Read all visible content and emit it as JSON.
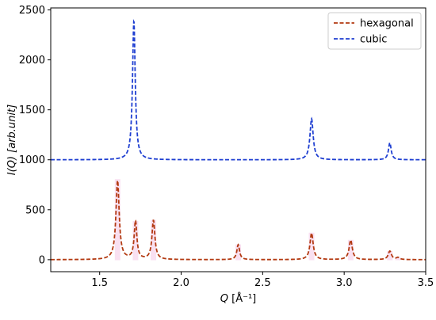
{
  "chart_data": {
    "type": "line",
    "xlabel_main": "Q",
    "xlabel_unit": " [Å⁻¹]",
    "ylabel_main": "I(Q)",
    "ylabel_unit": " [arb.unit]",
    "xlim": [
      1.2,
      3.5
    ],
    "ylim": [
      -120,
      2520
    ],
    "x_ticks": [
      1.5,
      2.0,
      2.5,
      3.0,
      3.5
    ],
    "x_tick_labels": [
      "1.5",
      "2.0",
      "2.5",
      "3.0",
      "3.5"
    ],
    "y_ticks": [
      0,
      500,
      1000,
      1500,
      2000,
      2500
    ],
    "y_tick_labels": [
      "0",
      "500",
      "1000",
      "1500",
      "2000",
      "2500"
    ],
    "legend_position": "top-right",
    "grid": false,
    "series": [
      {
        "name": "hexagonal",
        "color": "#b33a12",
        "dash": "dashed",
        "baseline": 0,
        "peaks": [
          {
            "x": 1.61,
            "height": 790,
            "width": 0.012
          },
          {
            "x": 1.72,
            "height": 380,
            "width": 0.01
          },
          {
            "x": 1.83,
            "height": 390,
            "width": 0.011
          },
          {
            "x": 2.35,
            "height": 150,
            "width": 0.01
          },
          {
            "x": 2.8,
            "height": 265,
            "width": 0.012
          },
          {
            "x": 3.04,
            "height": 195,
            "width": 0.012
          },
          {
            "x": 3.28,
            "height": 85,
            "width": 0.012
          },
          {
            "x": 3.33,
            "height": 20,
            "width": 0.012
          }
        ]
      },
      {
        "name": "cubic",
        "color": "#1f3fd1",
        "dash": "dashed",
        "baseline": 1000,
        "peaks": [
          {
            "x": 1.71,
            "height": 1390,
            "width": 0.01
          },
          {
            "x": 2.8,
            "height": 410,
            "width": 0.012
          },
          {
            "x": 3.28,
            "height": 170,
            "width": 0.01
          }
        ]
      }
    ],
    "highlight_color": "#f4c6e6"
  }
}
